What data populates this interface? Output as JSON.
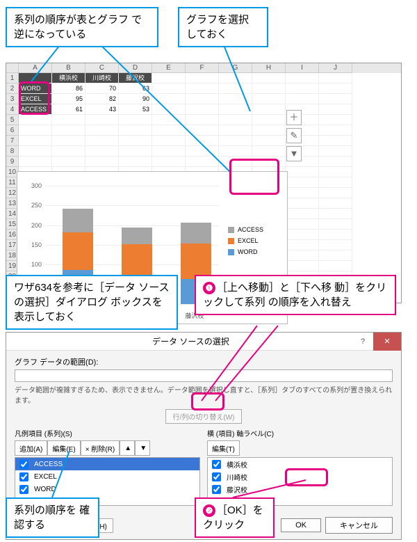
{
  "callouts": {
    "c1": "系列の順序が表とグラフ\nで逆になっている",
    "c2": "グラフを選択\nしておく",
    "c3": "ワザ634を参考に［データ\nソースの選択］ダイアログ\nボックスを表示しておく",
    "c4": "［上へ移動］と［下へ移\n動］をクリックして系列\nの順序を入れ替え",
    "c5": "系列の順序を\n確認する",
    "c6": "［OK］を\nクリック"
  },
  "nums": {
    "n1": "❶",
    "n2": "❷"
  },
  "sheet": {
    "cols": [
      "",
      "A",
      "B",
      "C",
      "D",
      "E",
      "F",
      "G",
      "H",
      "I",
      "J"
    ],
    "rows": [
      {
        "n": "1",
        "cells": [
          {
            "v": "",
            "cls": "thdr"
          },
          {
            "v": "横浜校",
            "cls": "thdr"
          },
          {
            "v": "川崎校",
            "cls": "thdr"
          },
          {
            "v": "藤沢校",
            "cls": "thdr"
          }
        ]
      },
      {
        "n": "2",
        "cells": [
          {
            "v": "WORD",
            "cls": "tlabel"
          },
          {
            "v": "86",
            "cls": "tdata"
          },
          {
            "v": "70",
            "cls": "tdata"
          },
          {
            "v": "63",
            "cls": "tdata"
          }
        ]
      },
      {
        "n": "3",
        "cells": [
          {
            "v": "EXCEL",
            "cls": "tlabel"
          },
          {
            "v": "95",
            "cls": "tdata"
          },
          {
            "v": "82",
            "cls": "tdata"
          },
          {
            "v": "90",
            "cls": "tdata"
          }
        ]
      },
      {
        "n": "4",
        "cells": [
          {
            "v": "ACCESS",
            "cls": "tlabel"
          },
          {
            "v": "61",
            "cls": "tdata"
          },
          {
            "v": "43",
            "cls": "tdata"
          },
          {
            "v": "53",
            "cls": "tdata"
          }
        ]
      }
    ]
  },
  "chart": {
    "categories": [
      "横浜校",
      "川崎校",
      "藤沢校"
    ],
    "series": [
      {
        "name": "ACCESS",
        "color": "#a6a6a6",
        "values": [
          61,
          43,
          53
        ]
      },
      {
        "name": "EXCEL",
        "color": "#ed7d31",
        "values": [
          95,
          82,
          90
        ]
      },
      {
        "name": "WORD",
        "color": "#5b9bd5",
        "values": [
          86,
          70,
          63
        ]
      }
    ],
    "ymax": 300,
    "ystep": 50,
    "buttons": [
      "＋",
      "✎",
      "▼"
    ]
  },
  "dialog": {
    "title": "データ ソースの選択",
    "range_label": "グラフ データの範囲(D):",
    "msg": "データ範囲が複雑すぎるため、表示できません。データ範囲を選択し直すと、［系列］タブのすべての系列が置き換えられます。",
    "switch": "行/列の切り替え(W)",
    "left": {
      "label": "凡例項目 (系列)(S)",
      "buttons": {
        "add": "追加(A)",
        "edit": "編集(E)",
        "del": "× 削除(R)",
        "up": "▲",
        "down": "▼"
      },
      "items": [
        "ACCESS",
        "EXCEL",
        "WORD"
      ],
      "selected": 0
    },
    "right": {
      "label": "横 (項目) 軸ラベル(C)",
      "buttons": {
        "edit": "編集(T)"
      },
      "items": [
        "横浜校",
        "川崎校",
        "藤沢校"
      ]
    },
    "footer": {
      "hidden": "非表示および空白のセル(H)",
      "ok": "OK",
      "cancel": "キャンセル"
    }
  }
}
